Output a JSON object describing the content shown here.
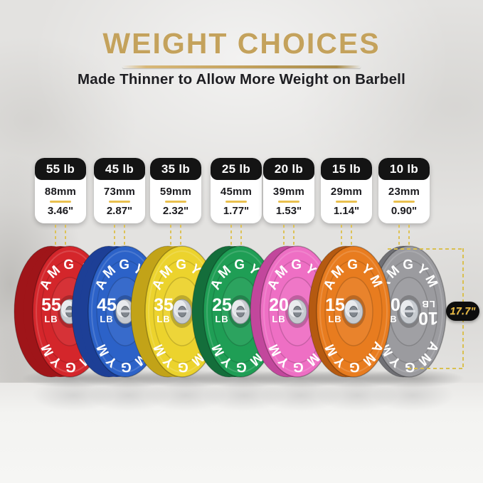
{
  "header": {
    "title": "WEIGHT CHOICES",
    "subtitle": "Made Thinner to Allow More Weight on Barbell"
  },
  "plates": [
    {
      "label": "55 lb",
      "mm": "88mm",
      "inches": "3.46\"",
      "weight": "55",
      "unit": "LB",
      "brand": "AMGYM",
      "face_color": "#d4262b",
      "edge_color": "#9f1519"
    },
    {
      "label": "45 lb",
      "mm": "73mm",
      "inches": "2.87\"",
      "weight": "45",
      "unit": "LB",
      "brand": "AMGYM",
      "face_color": "#2c62c8",
      "edge_color": "#1d3f96"
    },
    {
      "label": "35 lb",
      "mm": "59mm",
      "inches": "2.32\"",
      "weight": "35",
      "unit": "LB",
      "brand": "AMGYM",
      "face_color": "#ecd32d",
      "edge_color": "#c2a318"
    },
    {
      "label": "25 lb",
      "mm": "45mm",
      "inches": "1.77\"",
      "weight": "25",
      "unit": "LB",
      "brand": "AMGYM",
      "face_color": "#1f9e55",
      "edge_color": "#146e3b"
    },
    {
      "label": "20 lb",
      "mm": "39mm",
      "inches": "1.53\"",
      "weight": "20",
      "unit": "LB",
      "brand": "AMGYM",
      "face_color": "#ee6fc4",
      "edge_color": "#c2479c"
    },
    {
      "label": "15 lb",
      "mm": "29mm",
      "inches": "1.14\"",
      "weight": "15",
      "unit": "LB",
      "brand": "AMGYM",
      "face_color": "#e87c1f",
      "edge_color": "#b55a11"
    },
    {
      "label": "10 lb",
      "mm": "23mm",
      "inches": "0.90\"",
      "weight": "10",
      "unit": "LB",
      "brand": "AMGYM",
      "face_color": "#9b9b9f",
      "edge_color": "#707075"
    }
  ],
  "measurement": {
    "diameter": "17.7\""
  },
  "accent": {
    "title_gold": "#c4a25c",
    "dash_yellow": "#d9c050",
    "divider_gold": "#e9c04e",
    "pill_bg": "#0d0d0d",
    "pill_text": "#e9b93f",
    "card_header_bg": "#141414"
  }
}
